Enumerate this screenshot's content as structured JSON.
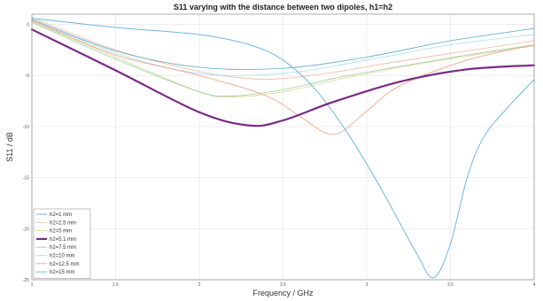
{
  "chart_data": {
    "type": "line",
    "title": "S11 varying with the distance between two dipoles, h1=h2",
    "xlabel": "Frequency / GHz",
    "ylabel": "S11 / dB",
    "xlim": [
      1,
      4
    ],
    "ylim": [
      -25,
      1
    ],
    "xticks": [
      "1",
      "1.5",
      "2",
      "2.5",
      "3",
      "3.5",
      "4"
    ],
    "yticks": [
      "0",
      "-5",
      "-10",
      "-15",
      "-20",
      "-25"
    ],
    "grid": true,
    "legend_position": "bottom-left",
    "series": [
      {
        "name": "h2=1 mm",
        "color": "#6fb6e3",
        "width": 1.0,
        "points": [
          [
            1,
            0.6
          ],
          [
            1.5,
            -0.3
          ],
          [
            2,
            -1.0
          ],
          [
            2.3,
            -2.0
          ],
          [
            2.5,
            -3.5
          ],
          [
            2.7,
            -6.5
          ],
          [
            2.9,
            -11.0
          ],
          [
            3.1,
            -16.5
          ],
          [
            3.3,
            -22.5
          ],
          [
            3.4,
            -24.8
          ],
          [
            3.5,
            -21.5
          ],
          [
            3.6,
            -15.0
          ],
          [
            3.7,
            -11.0
          ],
          [
            3.85,
            -8.0
          ],
          [
            4,
            -5.4
          ]
        ]
      },
      {
        "name": "h2=2.5 mm",
        "color": "#f0b8a0",
        "width": 0.8,
        "points": [
          [
            1,
            0.7
          ],
          [
            1.5,
            -2.5
          ],
          [
            2,
            -4.6
          ],
          [
            2.3,
            -5.3
          ],
          [
            2.5,
            -5.3
          ],
          [
            2.8,
            -4.7
          ],
          [
            3.2,
            -3.6
          ],
          [
            3.6,
            -2.6
          ],
          [
            4,
            -1.6
          ]
        ]
      },
      {
        "name": "h2=5 mm",
        "color": "#d9d79a",
        "width": 0.8,
        "points": [
          [
            1,
            0.3
          ],
          [
            1.5,
            -3.2
          ],
          [
            2,
            -6.6
          ],
          [
            2.2,
            -7.1
          ],
          [
            2.5,
            -6.6
          ],
          [
            2.8,
            -5.5
          ],
          [
            3.2,
            -4.2
          ],
          [
            3.6,
            -3.1
          ],
          [
            4,
            -2.1
          ]
        ]
      },
      {
        "name": "h2=5.1 mm",
        "color": "#7b2a86",
        "width": 2.2,
        "points": [
          [
            1,
            -0.5
          ],
          [
            1.5,
            -4.5
          ],
          [
            2,
            -8.6
          ],
          [
            2.3,
            -9.9
          ],
          [
            2.5,
            -9.4
          ],
          [
            2.8,
            -7.6
          ],
          [
            3.2,
            -5.6
          ],
          [
            3.6,
            -4.4
          ],
          [
            4,
            -4.0
          ]
        ]
      },
      {
        "name": "h2=7.5 mm",
        "color": "#9bcf9a",
        "width": 0.8,
        "points": [
          [
            1,
            0.2
          ],
          [
            1.5,
            -3.4
          ],
          [
            2,
            -6.6
          ],
          [
            2.2,
            -7.0
          ],
          [
            2.5,
            -6.4
          ],
          [
            2.8,
            -5.3
          ],
          [
            3.2,
            -4.1
          ],
          [
            3.6,
            -3.0
          ],
          [
            4,
            -2.0
          ]
        ]
      },
      {
        "name": "h2=10 mm",
        "color": "#a9dcef",
        "width": 0.8,
        "points": [
          [
            1,
            0.5
          ],
          [
            1.5,
            -2.8
          ],
          [
            2,
            -4.8
          ],
          [
            2.5,
            -4.8
          ],
          [
            3,
            -3.5
          ],
          [
            3.5,
            -2.0
          ],
          [
            4,
            -1.0
          ]
        ]
      },
      {
        "name": "h2=12.5 mm",
        "color": "#f09a7e",
        "width": 0.8,
        "points": [
          [
            1,
            0.4
          ],
          [
            1.5,
            -3.0
          ],
          [
            2,
            -5.0
          ],
          [
            2.4,
            -7.0
          ],
          [
            2.6,
            -9.0
          ],
          [
            2.75,
            -10.6
          ],
          [
            2.85,
            -10.5
          ],
          [
            3.0,
            -8.5
          ],
          [
            3.2,
            -6.0
          ],
          [
            3.6,
            -3.5
          ],
          [
            4,
            -2.0
          ]
        ]
      },
      {
        "name": "h2=15 mm",
        "color": "#5aa8c8",
        "width": 0.8,
        "points": [
          [
            1,
            0.5
          ],
          [
            1.5,
            -2.6
          ],
          [
            2,
            -4.2
          ],
          [
            2.5,
            -4.3
          ],
          [
            3,
            -3.2
          ],
          [
            3.5,
            -1.6
          ],
          [
            4,
            -0.4
          ]
        ]
      }
    ]
  }
}
